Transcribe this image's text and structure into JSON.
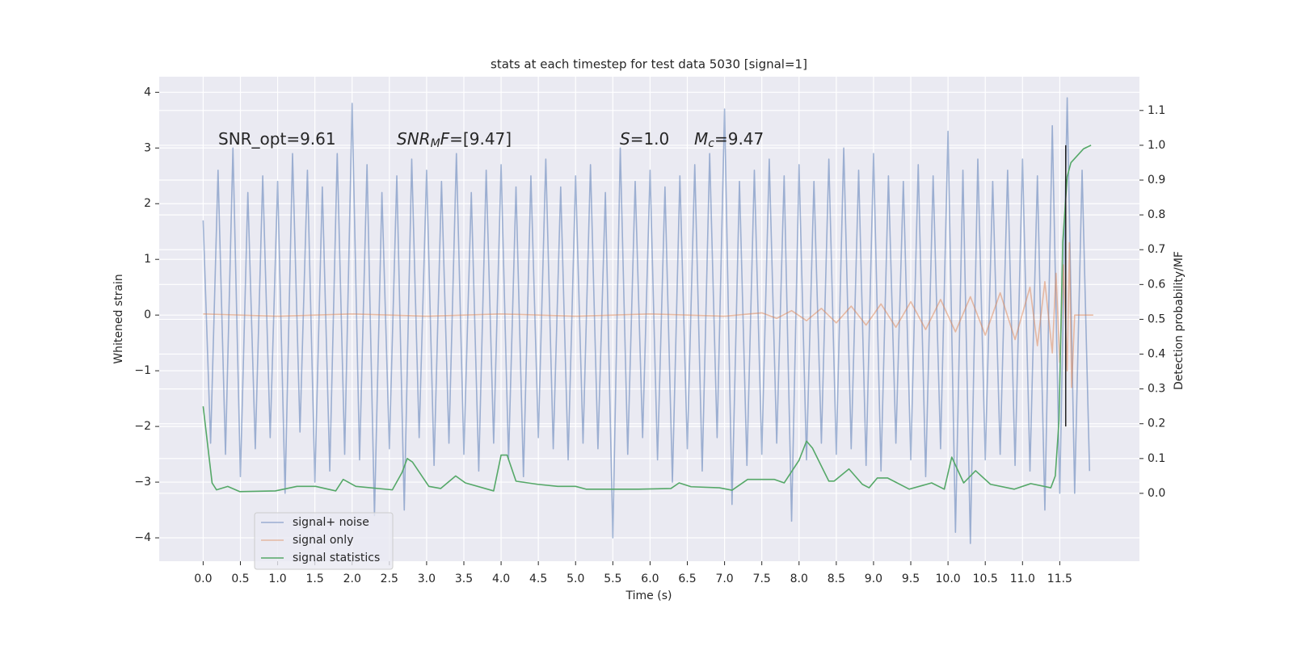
{
  "chart_data": {
    "type": "line",
    "title": "stats at each timestep for test data 5030 [signal=1]",
    "xlabel": "Time (s)",
    "ylabel": "Whitened strain",
    "y2label": "Detection probability/MF",
    "annotations": [
      {
        "parts": [
          {
            "text": "SNR_opt=9.61",
            "style": "normal"
          }
        ]
      },
      {
        "parts": [
          {
            "text": "SNR",
            "style": "italic"
          },
          {
            "text": "M",
            "style": "sub"
          },
          {
            "text": "F",
            "style": "italic"
          },
          {
            "text": "=[9.47]",
            "style": "normal"
          }
        ]
      },
      {
        "parts": [
          {
            "text": "S",
            "style": "italic"
          },
          {
            "text": "=1.0",
            "style": "normal"
          }
        ]
      },
      {
        "parts": [
          {
            "text": "M",
            "style": "italic"
          },
          {
            "text": "c",
            "style": "sub"
          },
          {
            "text": "=9.47",
            "style": "normal"
          }
        ]
      }
    ],
    "xlim": [
      -0.59,
      12.57
    ],
    "ylim": [
      -4.42,
      4.28
    ],
    "y2lim": [
      -0.195,
      1.197
    ],
    "xticks": [
      {
        "value": 0,
        "label": "0.0"
      },
      0.5,
      {
        "value": 1,
        "label": "1.0"
      },
      1.5,
      {
        "value": 2,
        "label": "2.0"
      },
      2.5,
      {
        "value": 3,
        "label": "3.0"
      },
      3.5,
      {
        "value": 4,
        "label": "4.0"
      },
      4.5,
      {
        "value": 5,
        "label": "5.0"
      },
      5.5,
      {
        "value": 6,
        "label": "6.0"
      },
      6.5,
      {
        "value": 7,
        "label": "7.0"
      },
      7.5,
      {
        "value": 8,
        "label": "8.0"
      },
      8.5,
      {
        "value": 9,
        "label": "9.0"
      },
      9.5,
      {
        "value": 10,
        "label": "10.0"
      },
      10.5,
      {
        "value": 11,
        "label": "11.0"
      },
      11.5
    ],
    "yticks": [
      {
        "value": -4,
        "label": "−4"
      },
      {
        "value": -3,
        "label": "−3"
      },
      {
        "value": -2,
        "label": "−2"
      },
      {
        "value": -1,
        "label": "−1"
      },
      0,
      1,
      2,
      3,
      4
    ],
    "y2ticks": [
      {
        "value": 0,
        "label": "0.0"
      },
      0.1,
      0.2,
      0.3,
      0.4,
      0.5,
      0.6,
      0.7,
      0.8,
      0.9,
      {
        "value": 1,
        "label": "1.0"
      },
      1.1
    ],
    "grid": true,
    "legend": "lower left",
    "vline": {
      "x": 11.58,
      "ymin": -2.0,
      "ymax": 3.05,
      "color": "#222222"
    },
    "series": [
      {
        "name": "signal+ noise",
        "color": "#4c72b0",
        "opacity": 0.5,
        "x": [
          0,
          0.1,
          0.2,
          0.3,
          0.4,
          0.5,
          0.6,
          0.7,
          0.8,
          0.9,
          1,
          1.1,
          1.2,
          1.3,
          1.4,
          1.5,
          1.6,
          1.7,
          1.8,
          1.9,
          2,
          2.1,
          2.2,
          2.3,
          2.4,
          2.5,
          2.6,
          2.7,
          2.8,
          2.9,
          3,
          3.1,
          3.2,
          3.3,
          3.4,
          3.5,
          3.6,
          3.7,
          3.8,
          3.9,
          4,
          4.1,
          4.2,
          4.3,
          4.4,
          4.5,
          4.6,
          4.7,
          4.8,
          4.9,
          5,
          5.1,
          5.2,
          5.3,
          5.4,
          5.5,
          5.6,
          5.7,
          5.8,
          5.9,
          6,
          6.1,
          6.2,
          6.3,
          6.4,
          6.5,
          6.6,
          6.7,
          6.8,
          6.9,
          7,
          7.1,
          7.2,
          7.3,
          7.4,
          7.5,
          7.6,
          7.7,
          7.8,
          7.9,
          8,
          8.1,
          8.2,
          8.3,
          8.4,
          8.5,
          8.6,
          8.7,
          8.8,
          8.9,
          9,
          9.1,
          9.2,
          9.3,
          9.4,
          9.5,
          9.6,
          9.7,
          9.8,
          9.9,
          10,
          10.1,
          10.2,
          10.3,
          10.4,
          10.5,
          10.6,
          10.7,
          10.8,
          10.9,
          11,
          11.1,
          11.2,
          11.3,
          11.4,
          11.5,
          11.6,
          11.7,
          11.8,
          11.9
        ],
        "values": [
          1.7,
          -2.3,
          2.6,
          -2.5,
          3.0,
          -2.9,
          2.2,
          -2.4,
          2.5,
          -2.2,
          2.4,
          -3.2,
          2.9,
          -2.1,
          2.6,
          -3.0,
          2.3,
          -2.8,
          2.9,
          -2.5,
          3.8,
          -2.6,
          2.7,
          -3.6,
          2.2,
          -2.4,
          2.5,
          -3.5,
          2.8,
          -2.2,
          2.6,
          -2.7,
          2.4,
          -2.3,
          2.9,
          -2.5,
          2.2,
          -2.8,
          2.6,
          -2.3,
          2.7,
          -2.6,
          2.3,
          -2.9,
          2.5,
          -2.2,
          2.8,
          -2.4,
          2.3,
          -2.6,
          2.5,
          -2.3,
          2.7,
          -2.4,
          2.2,
          -4.0,
          3.0,
          -2.5,
          2.4,
          -2.2,
          2.6,
          -2.6,
          2.3,
          -3.0,
          2.5,
          -2.4,
          2.7,
          -2.8,
          2.9,
          -2.2,
          3.7,
          -3.4,
          2.4,
          -2.7,
          2.6,
          -2.5,
          2.8,
          -2.3,
          2.5,
          -3.7,
          2.7,
          -2.6,
          2.4,
          -2.3,
          2.8,
          -2.5,
          3.0,
          -2.4,
          2.6,
          -2.7,
          2.9,
          -2.8,
          2.5,
          -2.3,
          2.4,
          -2.6,
          2.7,
          -2.9,
          2.5,
          -2.4,
          3.3,
          -3.9,
          2.6,
          -4.1,
          2.8,
          -2.6,
          2.4,
          -2.5,
          2.6,
          -2.7,
          2.8,
          -2.8,
          2.5,
          -3.5,
          3.4,
          -3.2,
          3.9,
          -3.2,
          2.6,
          -2.8
        ]
      },
      {
        "name": "signal only",
        "color": "#dd8452",
        "opacity": 0.5,
        "x": [
          0,
          1,
          2,
          3,
          4,
          5,
          6,
          7,
          7.5,
          7.7,
          7.9,
          8.1,
          8.3,
          8.5,
          8.7,
          8.9,
          9.1,
          9.3,
          9.5,
          9.7,
          9.9,
          10.1,
          10.3,
          10.5,
          10.7,
          10.9,
          11.1,
          11.2,
          11.3,
          11.4,
          11.45,
          11.5,
          11.55,
          11.6,
          11.63,
          11.66,
          11.7,
          11.95
        ],
        "values": [
          0.02,
          -0.02,
          0.02,
          -0.02,
          0.02,
          -0.02,
          0.02,
          -0.02,
          0.04,
          -0.06,
          0.08,
          -0.1,
          0.12,
          -0.14,
          0.16,
          -0.18,
          0.2,
          -0.22,
          0.24,
          -0.26,
          0.28,
          -0.3,
          0.33,
          -0.36,
          0.4,
          -0.44,
          0.5,
          -0.55,
          0.6,
          -0.68,
          0.75,
          -0.85,
          0.9,
          -1.0,
          1.3,
          -1.3,
          0.0,
          0.0
        ]
      },
      {
        "name": "signal statistics",
        "color": "#55a868",
        "axis": "y2",
        "x": [
          0.0,
          0.12,
          0.18,
          0.33,
          0.49,
          0.97,
          1.26,
          1.51,
          1.78,
          1.88,
          2.05,
          2.54,
          2.67,
          2.74,
          2.81,
          3.03,
          3.19,
          3.39,
          3.52,
          3.9,
          4.0,
          4.08,
          4.2,
          4.49,
          4.76,
          5.0,
          5.14,
          5.85,
          6.28,
          6.39,
          6.55,
          6.93,
          7.1,
          7.31,
          7.67,
          7.8,
          8.0,
          8.1,
          8.18,
          8.4,
          8.47,
          8.67,
          8.85,
          8.94,
          9.05,
          9.19,
          9.48,
          9.78,
          9.95,
          10.05,
          10.21,
          10.37,
          10.57,
          10.89,
          11.11,
          11.38,
          11.44,
          11.49,
          11.54,
          11.6,
          11.65,
          11.82,
          11.92
        ],
        "values": [
          0.25,
          0.03,
          0.01,
          0.02,
          0.005,
          0.007,
          0.02,
          0.02,
          0.007,
          0.04,
          0.02,
          0.01,
          0.06,
          0.1,
          0.09,
          0.02,
          0.014,
          0.05,
          0.03,
          0.007,
          0.11,
          0.11,
          0.035,
          0.026,
          0.02,
          0.02,
          0.012,
          0.012,
          0.014,
          0.03,
          0.019,
          0.016,
          0.009,
          0.04,
          0.04,
          0.03,
          0.095,
          0.15,
          0.13,
          0.035,
          0.035,
          0.07,
          0.026,
          0.016,
          0.044,
          0.044,
          0.012,
          0.03,
          0.012,
          0.104,
          0.03,
          0.065,
          0.026,
          0.012,
          0.028,
          0.016,
          0.05,
          0.21,
          0.72,
          0.91,
          0.95,
          0.99,
          1.0
        ]
      }
    ]
  }
}
